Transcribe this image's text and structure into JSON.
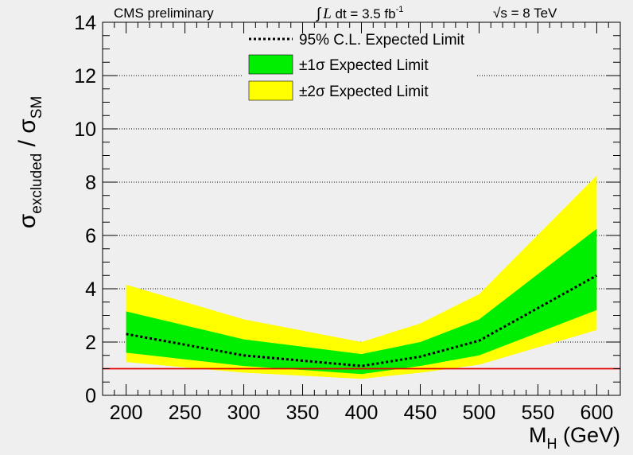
{
  "chart_data": {
    "type": "line",
    "header": {
      "experiment": "CMS preliminary",
      "lumi_integral": "∫",
      "lumi_L": "L",
      "lumi_text": " dt = 3.5 fb",
      "lumi_exp": "-1",
      "energy_sqrt": "√",
      "energy_text": "s = 8 TeV"
    },
    "xlabel": {
      "main": "M",
      "sub": "H",
      "unit": " (GeV)"
    },
    "ylabel": {
      "sigma1": "σ",
      "sub1": "excluded",
      "slash": " / ",
      "sigma2": "σ",
      "sub2": "SM"
    },
    "xlim": [
      180,
      620
    ],
    "ylim": [
      0,
      14
    ],
    "xticks": [
      200,
      250,
      300,
      350,
      400,
      450,
      500,
      550,
      600
    ],
    "yticks": [
      0,
      2,
      4,
      6,
      8,
      10,
      12,
      14
    ],
    "x": [
      200,
      300,
      400,
      450,
      500,
      600
    ],
    "expected_limit": [
      2.3,
      1.5,
      1.1,
      1.45,
      2.05,
      4.5
    ],
    "band_1sigma": {
      "low": [
        1.6,
        1.1,
        0.8,
        1.1,
        1.5,
        3.2
      ],
      "high": [
        3.15,
        2.1,
        1.55,
        2.0,
        2.85,
        6.25
      ]
    },
    "band_2sigma": {
      "low": [
        1.25,
        0.85,
        0.62,
        0.85,
        1.15,
        2.45
      ],
      "high": [
        4.15,
        2.85,
        2.0,
        2.7,
        3.8,
        8.25
      ]
    },
    "reference_line": {
      "y": 1,
      "color": "#e00000"
    },
    "legend": {
      "placement": "top-center",
      "entries": [
        {
          "label": "95% C.L. Expected Limit",
          "style": "dotted-line"
        },
        {
          "label": "±1σ Expected Limit",
          "style": "fill",
          "color": "#00ee00"
        },
        {
          "label": "±2σ Expected Limit",
          "style": "fill",
          "color": "#ffff00"
        }
      ]
    },
    "colors": {
      "band_1sigma": "#00ee00",
      "band_2sigma": "#ffff00",
      "expected": "#000000",
      "background": "#efefef"
    },
    "grid": "horizontal dotted"
  }
}
